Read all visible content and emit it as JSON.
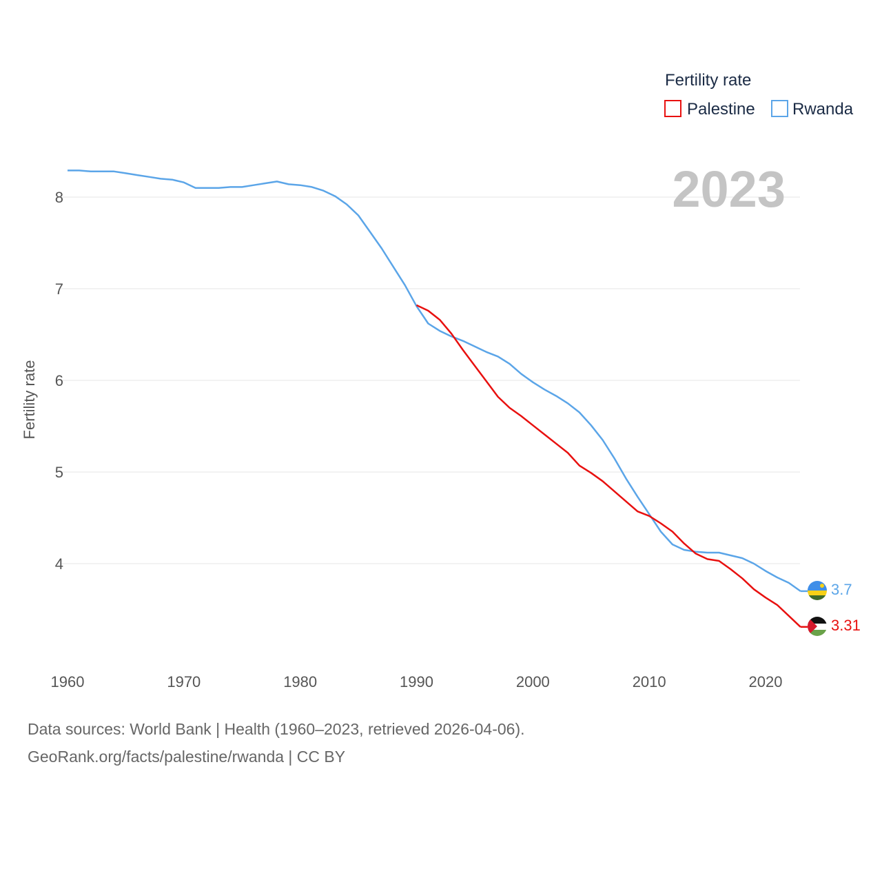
{
  "chart_data": {
    "type": "line",
    "year_label": "2023",
    "ylabel": "Fertility rate",
    "xlabel": "",
    "xlim": [
      1960,
      2023
    ],
    "ylim": [
      3.0,
      8.5
    ],
    "x_ticks": [
      1960,
      1970,
      1980,
      1990,
      2000,
      2010,
      2020
    ],
    "y_ticks": [
      4,
      5,
      6,
      7,
      8
    ],
    "grid": true,
    "legend": {
      "title": "Fertility rate",
      "placement": "top-right",
      "entries": [
        "Palestine",
        "Rwanda"
      ]
    },
    "series": [
      {
        "name": "Palestine",
        "color": "#e8100f",
        "end_label": "3.31",
        "flag": "palestine-flag-icon",
        "x": [
          1990,
          1991,
          1992,
          1993,
          1994,
          1995,
          1996,
          1997,
          1998,
          1999,
          2000,
          2001,
          2002,
          2003,
          2004,
          2005,
          2006,
          2007,
          2008,
          2009,
          2010,
          2011,
          2012,
          2013,
          2014,
          2015,
          2016,
          2017,
          2018,
          2019,
          2020,
          2021,
          2022,
          2023
        ],
        "values": [
          6.82,
          6.76,
          6.66,
          6.51,
          6.33,
          6.16,
          5.99,
          5.82,
          5.7,
          5.61,
          5.51,
          5.41,
          5.31,
          5.21,
          5.07,
          4.99,
          4.9,
          4.79,
          4.68,
          4.57,
          4.52,
          4.44,
          4.35,
          4.22,
          4.11,
          4.05,
          4.03,
          3.94,
          3.84,
          3.72,
          3.63,
          3.55,
          3.43,
          3.31
        ]
      },
      {
        "name": "Rwanda",
        "color": "#5ba5e8",
        "end_label": "3.7",
        "flag": "rwanda-flag-icon",
        "x": [
          1960,
          1961,
          1962,
          1963,
          1964,
          1965,
          1966,
          1967,
          1968,
          1969,
          1970,
          1971,
          1972,
          1973,
          1974,
          1975,
          1976,
          1977,
          1978,
          1979,
          1980,
          1981,
          1982,
          1983,
          1984,
          1985,
          1986,
          1987,
          1988,
          1989,
          1990,
          1991,
          1992,
          1993,
          1994,
          1995,
          1996,
          1997,
          1998,
          1999,
          2000,
          2001,
          2002,
          2003,
          2004,
          2005,
          2006,
          2007,
          2008,
          2009,
          2010,
          2011,
          2012,
          2013,
          2014,
          2015,
          2016,
          2017,
          2018,
          2019,
          2020,
          2021,
          2022,
          2023
        ],
        "values": [
          8.29,
          8.29,
          8.28,
          8.28,
          8.28,
          8.26,
          8.24,
          8.22,
          8.2,
          8.19,
          8.16,
          8.1,
          8.1,
          8.1,
          8.11,
          8.11,
          8.13,
          8.15,
          8.17,
          8.14,
          8.13,
          8.11,
          8.07,
          8.01,
          7.92,
          7.8,
          7.62,
          7.44,
          7.24,
          7.04,
          6.81,
          6.62,
          6.54,
          6.48,
          6.43,
          6.37,
          6.31,
          6.26,
          6.18,
          6.07,
          5.98,
          5.9,
          5.83,
          5.75,
          5.65,
          5.51,
          5.35,
          5.15,
          4.93,
          4.73,
          4.54,
          4.35,
          4.21,
          4.15,
          4.13,
          4.12,
          4.12,
          4.09,
          4.06,
          4.0,
          3.92,
          3.85,
          3.79,
          3.7
        ]
      }
    ]
  },
  "footer": {
    "line1": "Data sources: World Bank | Health (1960–2023, retrieved 2026-04-06).",
    "line2": "GeoRank.org/facts/palestine/rwanda | CC BY"
  }
}
